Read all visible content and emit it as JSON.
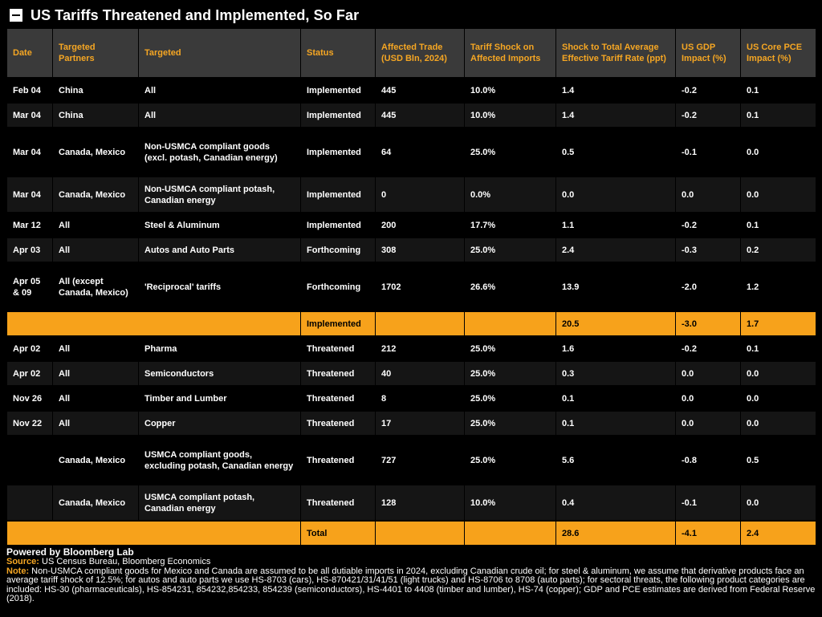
{
  "title": "US Tariffs Threatened and Implemented, So Far",
  "headers": [
    "Date",
    "Targeted Partners",
    "Targeted",
    "Status",
    "Affected Trade (USD Bln, 2024)",
    "Tariff Shock on Affected Imports",
    "Shock to Total Average Effective Tariff Rate (ppt)",
    "US GDP Impact (%)",
    "US Core PCE Impact (%)"
  ],
  "rows": [
    {
      "date": "Feb 04",
      "partners": "China",
      "targeted": "All",
      "status": "Implemented",
      "trade": "445",
      "shock": "10.0%",
      "rate": "1.4",
      "gdp": "-0.2",
      "pce": "0.1"
    },
    {
      "date": "Mar 04",
      "partners": "China",
      "targeted": "All",
      "status": "Implemented",
      "trade": "445",
      "shock": "10.0%",
      "rate": "1.4",
      "gdp": "-0.2",
      "pce": "0.1"
    },
    {
      "date": "Mar 04",
      "partners": "Canada, Mexico",
      "targeted": "Non-USMCA compliant goods (excl. potash, Canadian energy)",
      "status": "Implemented",
      "trade": "64",
      "shock": "25.0%",
      "rate": "0.5",
      "gdp": "-0.1",
      "pce": "0.0"
    },
    {
      "date": "Mar 04",
      "partners": "Canada, Mexico",
      "targeted": "Non-USMCA compliant potash, Canadian energy",
      "status": "Implemented",
      "trade": "0",
      "shock": "0.0%",
      "rate": "0.0",
      "gdp": "0.0",
      "pce": "0.0"
    },
    {
      "date": "Mar 12",
      "partners": "All",
      "targeted": "Steel & Aluminum",
      "status": "Implemented",
      "trade": "200",
      "shock": "17.7%",
      "rate": "1.1",
      "gdp": "-0.2",
      "pce": "0.1"
    },
    {
      "date": "Apr 03",
      "partners": "All",
      "targeted": "Autos and Auto Parts",
      "status": "Forthcoming",
      "trade": "308",
      "shock": "25.0%",
      "rate": "2.4",
      "gdp": "-0.3",
      "pce": "0.2"
    },
    {
      "date": "Apr 05 & 09",
      "partners": "All (except Canada, Mexico)",
      "targeted": "'Reciprocal' tariffs",
      "status": "Forthcoming",
      "trade": "1702",
      "shock": "26.6%",
      "rate": "13.9",
      "gdp": "-2.0",
      "pce": "1.2"
    }
  ],
  "implemented_summary": {
    "label": "Implemented",
    "rate": "20.5",
    "gdp": "-3.0",
    "pce": "1.7"
  },
  "threatened_rows": [
    {
      "date": "Apr 02",
      "partners": "All",
      "targeted": "Pharma",
      "status": "Threatened",
      "trade": "212",
      "shock": "25.0%",
      "rate": "1.6",
      "gdp": "-0.2",
      "pce": "0.1"
    },
    {
      "date": "Apr 02",
      "partners": "All",
      "targeted": "Semiconductors",
      "status": "Threatened",
      "trade": "40",
      "shock": "25.0%",
      "rate": "0.3",
      "gdp": "0.0",
      "pce": "0.0"
    },
    {
      "date": "Nov 26",
      "partners": "All",
      "targeted": "Timber and Lumber",
      "status": "Threatened",
      "trade": "8",
      "shock": "25.0%",
      "rate": "0.1",
      "gdp": "0.0",
      "pce": "0.0"
    },
    {
      "date": "Nov 22",
      "partners": "All",
      "targeted": "Copper",
      "status": "Threatened",
      "trade": "17",
      "shock": "25.0%",
      "rate": "0.1",
      "gdp": "0.0",
      "pce": "0.0"
    },
    {
      "date": "",
      "partners": "Canada, Mexico",
      "targeted": "USMCA compliant goods, excluding potash, Canadian energy",
      "status": "Threatened",
      "trade": "727",
      "shock": "25.0%",
      "rate": "5.6",
      "gdp": "-0.8",
      "pce": "0.5"
    },
    {
      "date": "",
      "partners": "Canada, Mexico",
      "targeted": "USMCA compliant potash, Canadian energy",
      "status": "Threatened",
      "trade": "128",
      "shock": "10.0%",
      "rate": "0.4",
      "gdp": "-0.1",
      "pce": "0.0"
    }
  ],
  "total_summary": {
    "label": "Total",
    "rate": "28.6",
    "gdp": "-4.1",
    "pce": "2.4"
  },
  "footer": {
    "powered": "Powered by Bloomberg Lab",
    "source_label": "Source:",
    "source_text": " US Census Bureau, Bloomberg Economics",
    "note_label": "Note:",
    "note_text": " Non-USMCA compliant goods for Mexico and Canada are assumed to be all dutiable imports in 2024, excluding Canadian crude oil; for steel & aluminum, we assume that derivative products face an average tariff shock of 12.5%; for autos and auto parts we use HS-8703 (cars), HS-870421/31/41/51 (light trucks) and HS-8706 to 8708 (auto parts); for sectoral threats, the following product categories are included: HS-30 (pharmaceuticals), HS-854231, 854232,854233, 854239 (semiconductors), HS-4401 to 4408 (timber and lumber), HS-74 (copper); GDP and PCE estimates are derived from Federal Reserve (2018)."
  },
  "colors": {
    "accent": "#f7a21b",
    "header_bg": "#3a3a3a",
    "header_text": "#f5a623"
  }
}
